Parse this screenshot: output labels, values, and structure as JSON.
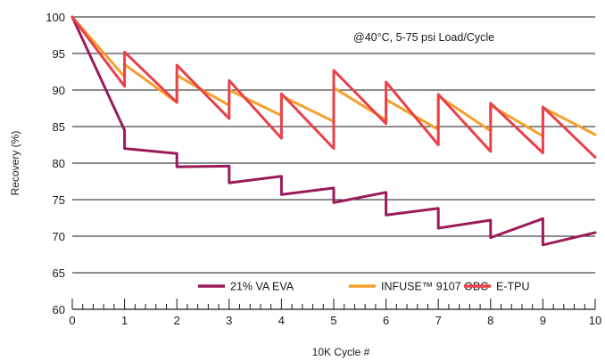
{
  "chart_data": {
    "type": "line",
    "title": "",
    "annotation": "@40°C, 5-75 psi Load/Cycle",
    "xlabel": "10K Cycle #",
    "ylabel": "Recovery (%)",
    "xlim": [
      0,
      10
    ],
    "ylim": [
      60,
      100
    ],
    "xticks": [
      0,
      1,
      2,
      3,
      4,
      5,
      6,
      7,
      8,
      9,
      10
    ],
    "yticks": [
      60,
      65,
      70,
      75,
      80,
      85,
      90,
      95,
      100
    ],
    "grid": "horizontal",
    "legend_position": "bottom-right",
    "series": [
      {
        "name": "21% VA EVA",
        "color": "#9b1b5a",
        "points": [
          [
            0,
            100
          ],
          [
            1,
            84.5
          ],
          [
            1,
            82
          ],
          [
            2,
            81.3
          ],
          [
            2,
            79.5
          ],
          [
            3,
            79.6
          ],
          [
            3,
            77.3
          ],
          [
            4,
            78.2
          ],
          [
            4,
            75.7
          ],
          [
            5,
            76.6
          ],
          [
            5,
            74.6
          ],
          [
            6,
            76
          ],
          [
            6,
            72.9
          ],
          [
            7,
            73.8
          ],
          [
            7,
            71.1
          ],
          [
            8,
            72.2
          ],
          [
            8,
            69.8
          ],
          [
            9,
            72.4
          ],
          [
            9,
            68.8
          ],
          [
            10,
            70.5
          ]
        ]
      },
      {
        "name": "INFUSE™ 9107 OBC",
        "color": "#f5a029",
        "points": [
          [
            0,
            100
          ],
          [
            1,
            91.8
          ],
          [
            1,
            93.5
          ],
          [
            2,
            88.3
          ],
          [
            2,
            92.0
          ],
          [
            3,
            87.9
          ],
          [
            3,
            90.0
          ],
          [
            4,
            86.5
          ],
          [
            4,
            89.2
          ],
          [
            5,
            85.7
          ],
          [
            5,
            90.3
          ],
          [
            6,
            85.9
          ],
          [
            6,
            88.7
          ],
          [
            7,
            84.6
          ],
          [
            7,
            89.2
          ],
          [
            8,
            84.4
          ],
          [
            8,
            87.9
          ],
          [
            9,
            83.7
          ],
          [
            9,
            87.6
          ],
          [
            10,
            83.9
          ]
        ]
      },
      {
        "name": "E-TPU",
        "color": "#e8414a",
        "points": [
          [
            0,
            100
          ],
          [
            1,
            90.5
          ],
          [
            1,
            95.2
          ],
          [
            2,
            88.3
          ],
          [
            2,
            93.4
          ],
          [
            3,
            86.1
          ],
          [
            3,
            91.3
          ],
          [
            4,
            83.4
          ],
          [
            4,
            89.5
          ],
          [
            5,
            82.0
          ],
          [
            5,
            92.7
          ],
          [
            6,
            85.4
          ],
          [
            6,
            91.1
          ],
          [
            7,
            82.5
          ],
          [
            7,
            89.4
          ],
          [
            8,
            81.6
          ],
          [
            8,
            88.2
          ],
          [
            9,
            81.4
          ],
          [
            9,
            87.7
          ],
          [
            10,
            80.8
          ]
        ]
      }
    ]
  }
}
